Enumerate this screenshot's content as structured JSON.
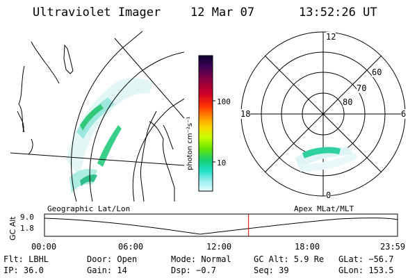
{
  "header": {
    "instrument": "Ultraviolet Imager",
    "date": "12 Mar 07",
    "time": "13:52:26 UT"
  },
  "left_panel": {
    "projection_label": "Geographic Lat/Lon"
  },
  "right_panel": {
    "projection_label": "Apex  MLat/MLT",
    "mlt_labels": {
      "top": "12",
      "left": "18",
      "right": "6",
      "bottom": "0"
    },
    "lat_labels": [
      "60",
      "70",
      "80"
    ]
  },
  "colorbar": {
    "unit_label": "photon cm⁻²s⁻¹",
    "ticks": [
      "100",
      "10"
    ],
    "colors": [
      "#0a0030",
      "#3c0055",
      "#8a0040",
      "#d0002a",
      "#ff3000",
      "#ff8a00",
      "#ffd000",
      "#c8ff00",
      "#6ee600",
      "#18d070",
      "#20e0c8",
      "#9ff0f0",
      "#e4ffff"
    ]
  },
  "altitude_strip": {
    "axis_label": "GC Alt",
    "y_ticks": [
      "9.0",
      "1.8"
    ],
    "x_ticks": [
      "00:00",
      "06:00",
      "12:00",
      "18:00",
      "23:59"
    ],
    "current_time_fraction": 0.578,
    "marker_color": "#dd0000"
  },
  "info": {
    "row1": {
      "filter": "Flt: LBHL",
      "door": "Door: Open",
      "mode": "Mode: Normal",
      "gc_alt": "GC Alt: 5.9 Re",
      "glat": "GLat: −56.7"
    },
    "row2": {
      "ip": "IP: 36.0",
      "gain": "Gain: 14",
      "dsp": "Dsp:   −0.7",
      "seq": "Seq: 39",
      "glon": "GLon: 153.5"
    }
  }
}
